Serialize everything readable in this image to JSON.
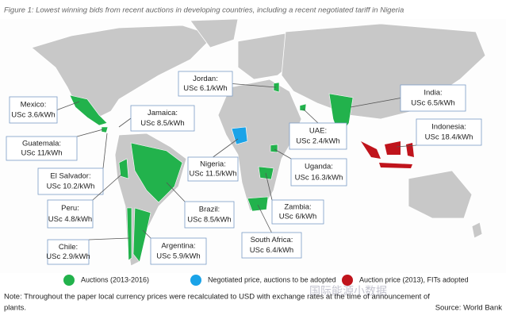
{
  "title": "Figure 1: Lowest winning bids from recent auctions in developing countries, including a recent negotiated tariff in Nigeria",
  "callouts": [
    {
      "country": "Mexico:",
      "price": "USc 3.6/kWh"
    },
    {
      "country": "Guatemala:",
      "price": "USc 11/kWh"
    },
    {
      "country": "El Salvador:",
      "price": "USc 10.2/kWh"
    },
    {
      "country": "Peru:",
      "price": "USc 4.8/kWh"
    },
    {
      "country": "Chile:",
      "price": "USc 2.9/kWh"
    },
    {
      "country": "Jamaica:",
      "price": "USc 8.5/kWh"
    },
    {
      "country": "Nigeria:",
      "price": "USc 11.5/kWh"
    },
    {
      "country": "Brazil:",
      "price": "USc 8.5/kWh"
    },
    {
      "country": "Argentina:",
      "price": "USc 5.9/kWh"
    },
    {
      "country": "Jordan:",
      "price": "USc 6.1/kWh"
    },
    {
      "country": "UAE:",
      "price": "USc 2.4/kWh"
    },
    {
      "country": "Uganda:",
      "price": "USc 16.3/kWh"
    },
    {
      "country": "Zambia:",
      "price": "USc 6/kWh"
    },
    {
      "country": "South Africa:",
      "price": "USc 6.4/kWh"
    },
    {
      "country": "India:",
      "price": "USc 6.5/kWh"
    },
    {
      "country": "Indonesia:",
      "price": "USc 18.4/kWh"
    }
  ],
  "legend": [
    {
      "label": "Auctions (2013-2016)",
      "color": "#22b24c"
    },
    {
      "label": "Negotiated price, auctions to be adopted",
      "color": "#1aa3e8"
    },
    {
      "label": "Auction price (2013), FITs adopted",
      "color": "#c0141c"
    }
  ],
  "note": [
    "Note: Throughout the paper local currency prices were recalculated to USD with exchange rates at the time of announcement of",
    "plants."
  ],
  "source": "Source: World Bank",
  "watermark": "国际能源小数据"
}
